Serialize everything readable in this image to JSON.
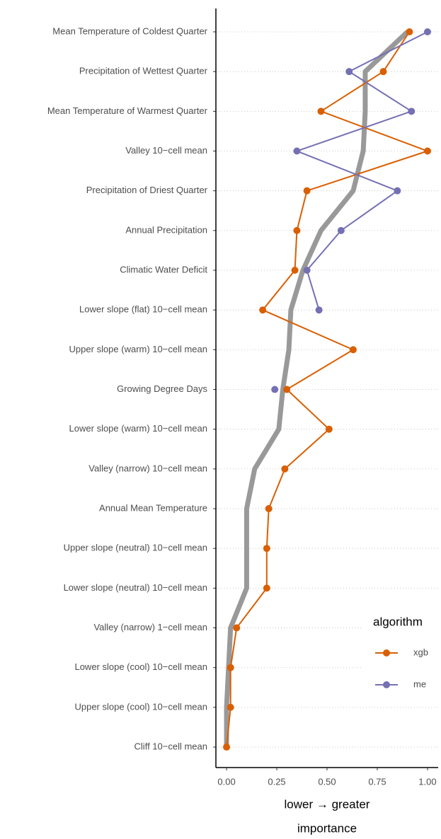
{
  "chart_data": {
    "type": "line",
    "categories": [
      "Mean Temperature of Coldest Quarter",
      "Precipitation of Wettest Quarter",
      "Mean Temperature of Warmest Quarter",
      "Valley 10−cell mean",
      "Precipitation of Driest Quarter",
      "Annual Precipitation",
      "Climatic Water Deficit",
      "Lower slope (flat) 10−cell mean",
      "Upper slope (warm) 10−cell mean",
      "Growing Degree Days",
      "Lower slope (warm) 10−cell mean",
      "Valley (narrow) 10−cell mean",
      "Annual Mean Temperature",
      "Upper slope (neutral) 10−cell mean",
      "Lower slope (neutral) 10−cell mean",
      "Valley (narrow) 1−cell mean",
      "Lower slope (cool) 10−cell mean",
      "Upper slope (cool) 10−cell mean",
      "Cliff 10−cell mean"
    ],
    "series": [
      {
        "name": "xgb",
        "color": "#d95f02",
        "values": [
          0.91,
          0.78,
          0.47,
          1.0,
          0.4,
          0.35,
          0.34,
          0.18,
          0.63,
          0.3,
          0.51,
          0.29,
          0.21,
          0.2,
          0.2,
          0.05,
          0.02,
          0.02,
          0.0
        ]
      },
      {
        "name": "me",
        "color": "#7570b3",
        "values": [
          1.0,
          0.61,
          0.92,
          0.35,
          0.85,
          0.57,
          0.4,
          0.46,
          null,
          0.24,
          null,
          null,
          null,
          null,
          null,
          null,
          null,
          null,
          null
        ]
      }
    ],
    "trend": {
      "color": "#999999",
      "values": [
        0.9,
        0.69,
        0.69,
        0.68,
        0.63,
        0.47,
        0.38,
        0.32,
        0.31,
        0.28,
        0.26,
        0.14,
        0.1,
        0.1,
        0.1,
        0.02,
        0.01,
        0.0,
        0.0
      ]
    },
    "xlim": [
      -0.053,
      1.053
    ],
    "xticks": [
      {
        "value": 0,
        "label": "0.00"
      },
      {
        "value": 0.25,
        "label": "0.25"
      },
      {
        "value": 0.5,
        "label": "0.50"
      },
      {
        "value": 0.75,
        "label": "0.75"
      },
      {
        "value": 1,
        "label": "1.00"
      }
    ],
    "xlabel": "lower → greater",
    "xlabel2": "importance",
    "legend_title": "algorithm",
    "grid": true
  }
}
